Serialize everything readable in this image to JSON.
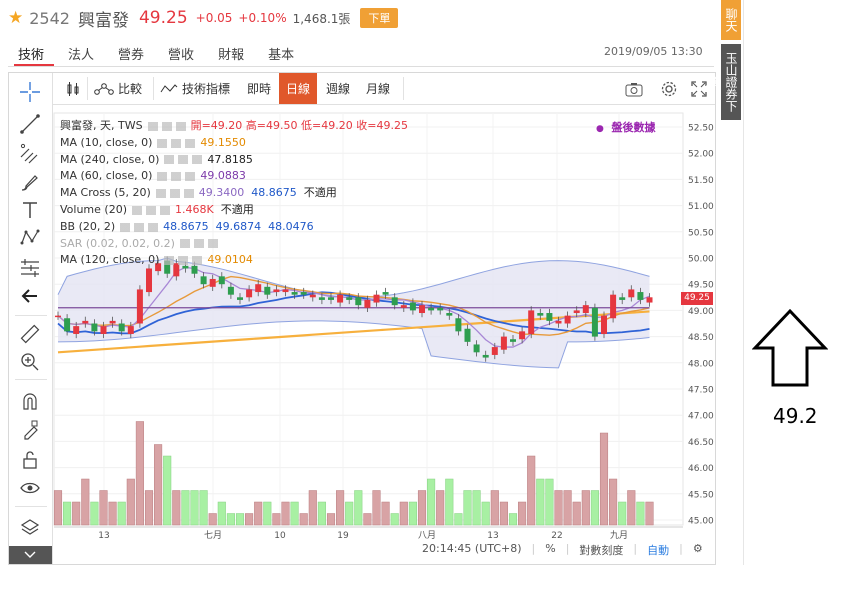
{
  "header": {
    "code": "2542",
    "name": "興富發",
    "price": "49.25",
    "change": "+0.05",
    "change_pct": "+0.10%",
    "volume": "1,468.1張",
    "order_button": "下單",
    "datetime": "2019/09/05 13:30"
  },
  "tabs": [
    "技術",
    "法人",
    "營券",
    "營收",
    "財報",
    "基本"
  ],
  "toolbar": {
    "compare": "比較",
    "indicators": "技術指標",
    "realtime": "即時",
    "daily": "日線",
    "weekly": "週線",
    "monthly": "月線"
  },
  "legend": {
    "main": {
      "title": "興富發, 天, TWS",
      "open_label": "開=49.20",
      "high_label": "高=49.50",
      "low_label": "低=49.20",
      "close_label": "收=49.25"
    },
    "ma10": {
      "name": "MA (10, close, 0)",
      "value": "49.1550"
    },
    "ma240": {
      "name": "MA (240, close, 0)",
      "value": "47.8185"
    },
    "ma60": {
      "name": "MA (60, close, 0)",
      "value": "49.0883"
    },
    "macross": {
      "name": "MA Cross (5, 20)",
      "v1": "49.3400",
      "v2": "48.8675",
      "v3": "不適用"
    },
    "volume": {
      "name": "Volume (20)",
      "v1": "1.468K",
      "v2": "不適用"
    },
    "bb": {
      "name": "BB (20, 2)",
      "v1": "48.8675",
      "v2": "49.6874",
      "v3": "48.0476"
    },
    "sar": {
      "name": "SAR (0.02, 0.02, 0.2)"
    },
    "ma120": {
      "name": "MA (120, close, 0)",
      "value": "49.0104"
    },
    "after_hours": "盤後數據"
  },
  "y_axis": [
    "52.50",
    "52.00",
    "51.50",
    "51.00",
    "50.50",
    "50.00",
    "49.50",
    "49.00",
    "48.50",
    "48.00",
    "47.50",
    "47.00",
    "46.50",
    "46.00",
    "45.50",
    "45.00"
  ],
  "price_tag": "49.25",
  "x_axis": [
    "13",
    "七月",
    "10",
    "19",
    "八月",
    "13",
    "22",
    "九月"
  ],
  "bottom": {
    "time": "20:14:45 (UTC+8)",
    "pct": "%",
    "log": "對數刻度",
    "auto": "自動"
  },
  "side_tabs": {
    "chat": "聊天室",
    "broker": "玉山證券下單"
  },
  "annotation": {
    "value": "49.2"
  },
  "colors": {
    "up": "#e5373f",
    "down": "#2e9e4f",
    "accent": "#e0582b",
    "bb_fill": "#e3e3f3"
  }
}
